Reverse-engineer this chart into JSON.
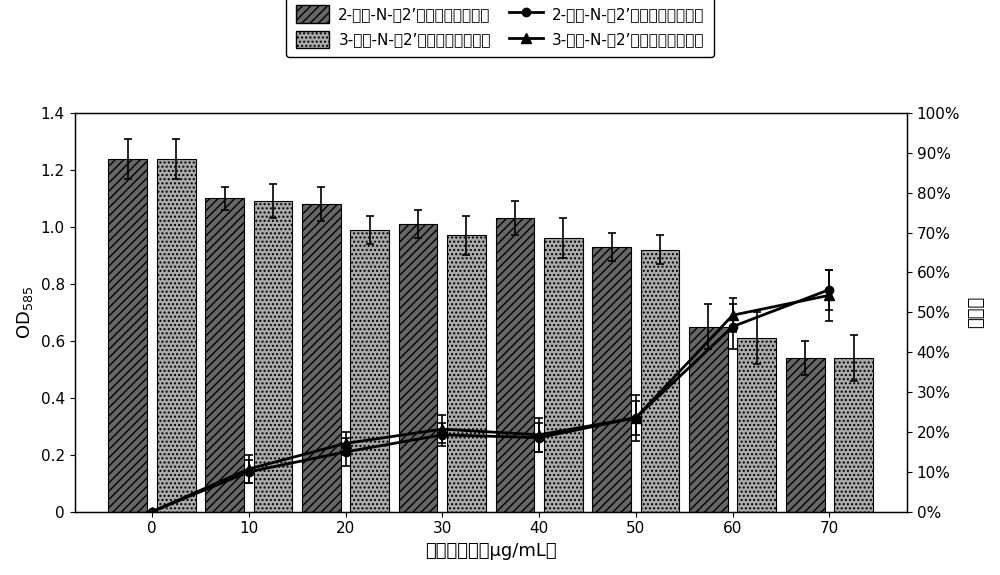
{
  "x_positions": [
    0,
    10,
    20,
    30,
    40,
    50,
    60,
    70
  ],
  "bar1_values": [
    1.24,
    1.1,
    1.08,
    1.01,
    1.03,
    0.93,
    0.65,
    0.54
  ],
  "bar2_values": [
    1.24,
    1.09,
    0.99,
    0.97,
    0.96,
    0.92,
    0.61,
    0.54
  ],
  "bar1_errors": [
    0.07,
    0.04,
    0.06,
    0.05,
    0.06,
    0.05,
    0.08,
    0.06
  ],
  "bar2_errors": [
    0.07,
    0.06,
    0.05,
    0.07,
    0.07,
    0.05,
    0.09,
    0.08
  ],
  "line1_values": [
    0.0,
    0.14,
    0.21,
    0.27,
    0.26,
    0.33,
    0.65,
    0.78
  ],
  "line2_values": [
    0.0,
    0.15,
    0.24,
    0.29,
    0.27,
    0.33,
    0.69,
    0.76
  ],
  "line1_errors": [
    0.0,
    0.04,
    0.05,
    0.04,
    0.05,
    0.06,
    0.08,
    0.07
  ],
  "line2_errors": [
    0.0,
    0.05,
    0.04,
    0.05,
    0.06,
    0.08,
    0.06,
    0.09
  ],
  "bar_width": 4.0,
  "bar1_color": "#666666",
  "bar2_color": "#aaaaaa",
  "bar1_hatch": "////",
  "bar2_hatch": "....",
  "line1_color": "#000000",
  "line2_color": "#000000",
  "xlabel": "化合物浓度（μg/mL）",
  "ylabel_left": "OD$_{585}$",
  "ylabel_right": "抑制率",
  "ylim_left": [
    0,
    1.4
  ],
  "yticks_left": [
    0,
    0.2,
    0.4,
    0.6,
    0.8,
    1.0,
    1.2,
    1.4
  ],
  "yticks_right_pct": [
    "0%",
    "10%",
    "20%",
    "30%",
    "40%",
    "50%",
    "60%",
    "70%",
    "80%",
    "90%",
    "100%"
  ],
  "legend1_label": "2-甲基-N-（2’－苯乙基）丁酰胺",
  "legend2_label": "3-甲基-N-（2’－苯乙基）丁酰胺",
  "legend3_label": "2-甲基-N-（2’－苯乙基）丁酰胺",
  "legend4_label": "3-甲基-N-（2’－苯乙基）丁酰胺",
  "axis_fontsize": 13,
  "tick_fontsize": 11,
  "legend_fontsize": 11
}
